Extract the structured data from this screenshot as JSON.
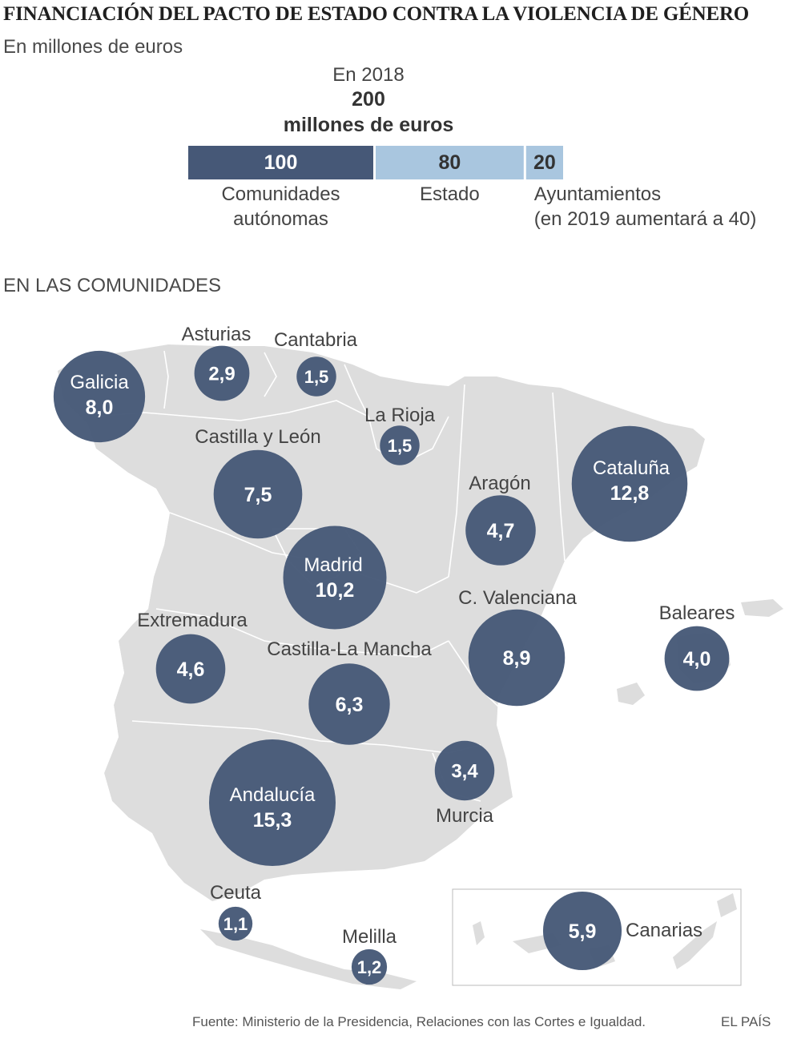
{
  "title": "FINANCIACIÓN DEL PACTO DE ESTADO CONTRA LA VIOLENCIA DE GÉNERO",
  "subtitle": "En millones de euros",
  "section_label": "EN LAS COMUNIDADES",
  "source": "Fuente: Ministerio de la Presidencia, Relaciones con las Cortes e Igualdad.",
  "brand": "EL PAÍS",
  "colors": {
    "dark_blue": "#465877",
    "light_blue": "#a9c6df",
    "map_fill": "#dddddd",
    "map_border": "#ffffff"
  },
  "chart_data": [
    {
      "type": "bar",
      "orientation": "horizontal-stacked",
      "header_year": "En 2018",
      "header_total": "200",
      "header_unit": "millones de euros",
      "total": 200,
      "segments": [
        {
          "value": 100,
          "label": "100",
          "lines": [
            "Comunidades",
            "autónomas"
          ],
          "color": "#465877",
          "text_color": "#ffffff"
        },
        {
          "value": 80,
          "label": "80",
          "lines": [
            "Estado"
          ],
          "color": "#a9c6df",
          "text_color": "#333333"
        },
        {
          "value": 20,
          "label": "20",
          "lines": [
            "Ayuntamientos",
            "(en 2019 aumentará a 40)"
          ],
          "color": "#a9c6df",
          "text_color": "#333333"
        }
      ]
    },
    {
      "type": "scatter",
      "subtype": "proportional-symbol-map",
      "unit": "millones de euros",
      "regions": [
        {
          "name": "Galicia",
          "value": "8,0",
          "v": 8.0,
          "label_inside": true
        },
        {
          "name": "Asturias",
          "value": "2,9",
          "v": 2.9,
          "label_inside": false
        },
        {
          "name": "Cantabria",
          "value": "1,5",
          "v": 1.5,
          "label_inside": false
        },
        {
          "name": "La Rioja",
          "value": "1,5",
          "v": 1.5,
          "label_inside": false
        },
        {
          "name": "Castilla y León",
          "value": "7,5",
          "v": 7.5,
          "label_inside": false
        },
        {
          "name": "Aragón",
          "value": "4,7",
          "v": 4.7,
          "label_inside": false
        },
        {
          "name": "Cataluña",
          "value": "12,8",
          "v": 12.8,
          "label_inside": true
        },
        {
          "name": "Madrid",
          "value": "10,2",
          "v": 10.2,
          "label_inside": true
        },
        {
          "name": "C. Valenciana",
          "value": "8,9",
          "v": 8.9,
          "label_inside": false
        },
        {
          "name": "Baleares",
          "value": "4,0",
          "v": 4.0,
          "label_inside": false
        },
        {
          "name": "Extremadura",
          "value": "4,6",
          "v": 4.6,
          "label_inside": false
        },
        {
          "name": "Castilla-La Mancha",
          "value": "6,3",
          "v": 6.3,
          "label_inside": false
        },
        {
          "name": "Andalucía",
          "value": "15,3",
          "v": 15.3,
          "label_inside": true
        },
        {
          "name": "Murcia",
          "value": "3,4",
          "v": 3.4,
          "label_inside": false
        },
        {
          "name": "Ceuta",
          "value": "1,1",
          "v": 1.1,
          "label_inside": false
        },
        {
          "name": "Melilla",
          "value": "1,2",
          "v": 1.2,
          "label_inside": false
        },
        {
          "name": "Canarias",
          "value": "5,9",
          "v": 5.9,
          "label_inside": false
        }
      ]
    }
  ]
}
